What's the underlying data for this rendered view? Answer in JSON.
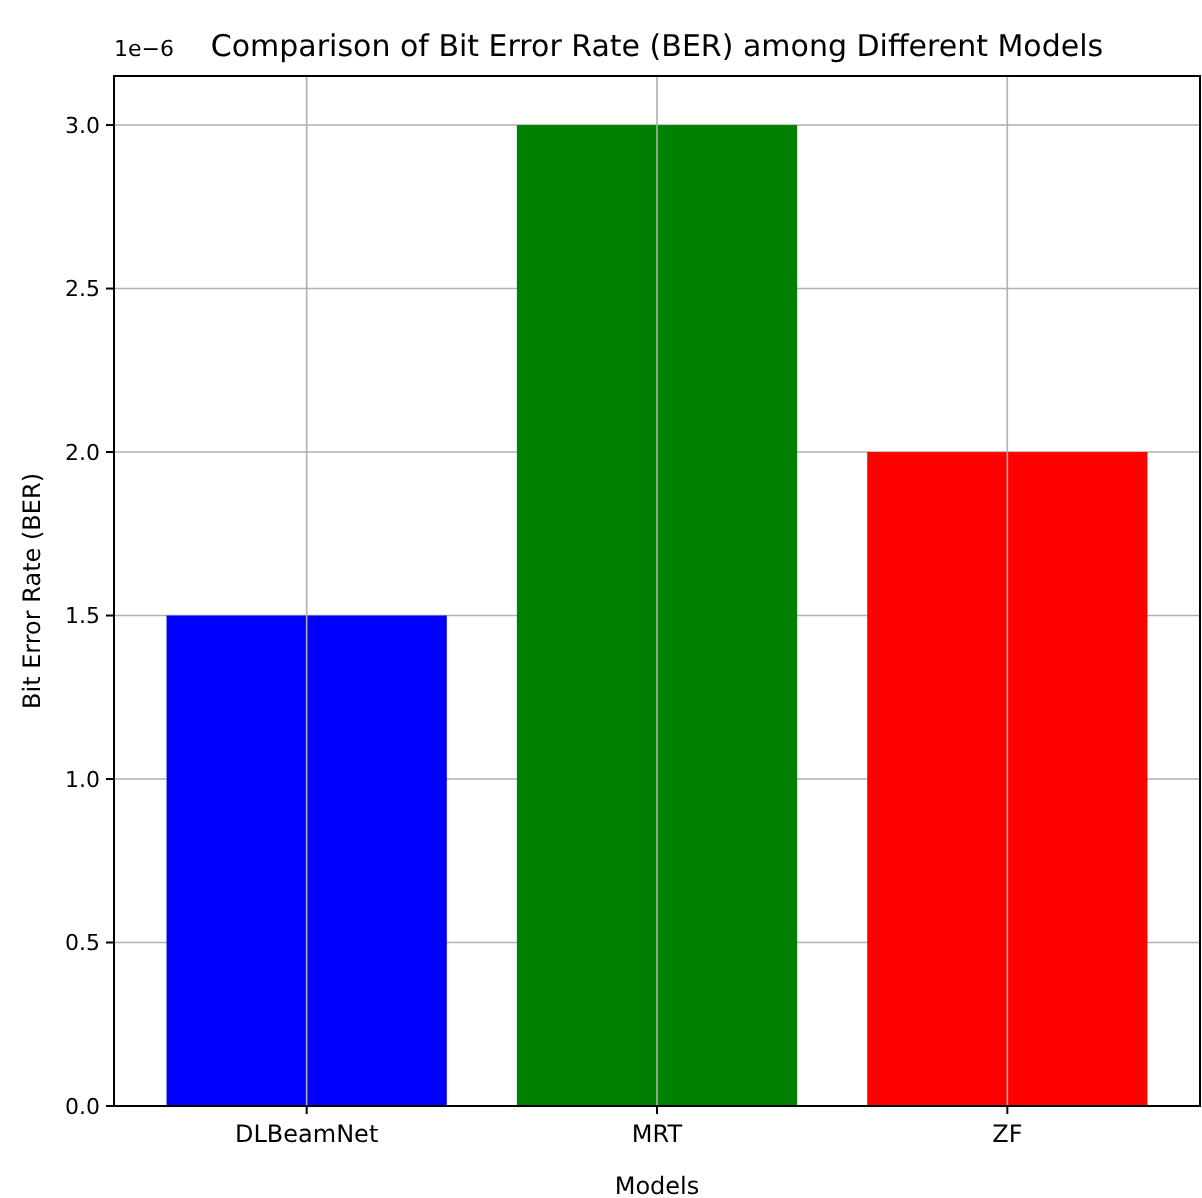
{
  "chart_data": {
    "type": "bar",
    "title": "Comparison of Bit Error Rate (BER) among Different Models",
    "xlabel": "Models",
    "ylabel": "Bit Error Rate (BER)",
    "categories": [
      "DLBeamNet",
      "MRT",
      "ZF"
    ],
    "values": [
      1.5,
      3.0,
      2.0
    ],
    "colors": [
      "#0000ff",
      "#008000",
      "#ff0000"
    ],
    "ylim": [
      0,
      3.15
    ],
    "yticks": [
      {
        "value": 0,
        "label": "0.0"
      },
      {
        "value": 0.5,
        "label": "0.5"
      },
      {
        "value": 1,
        "label": "1.0"
      },
      {
        "value": 1.5,
        "label": "1.5"
      },
      {
        "value": 2,
        "label": "2.0"
      },
      {
        "value": 2.5,
        "label": "2.5"
      },
      {
        "value": 3,
        "label": "3.0"
      }
    ],
    "grid": true,
    "annotations": [
      "1e−6"
    ]
  }
}
